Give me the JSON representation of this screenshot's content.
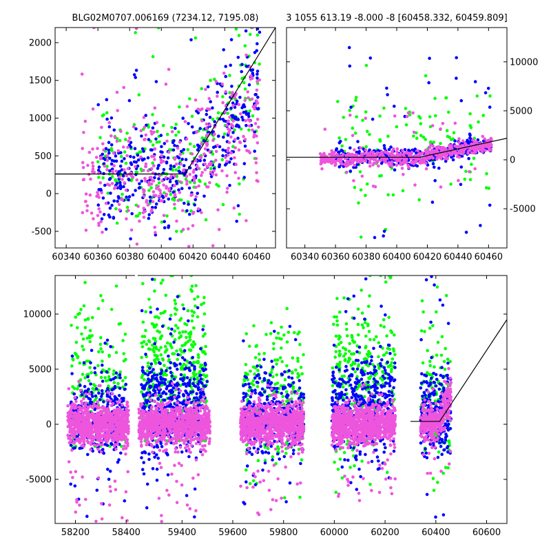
{
  "colors": {
    "green": "#00ff00",
    "blue": "#0000ff",
    "pink": "#ee55dd",
    "frame": "#000000",
    "model": "#000000"
  },
  "chart_data": [
    {
      "id": "top-left",
      "type": "scatter",
      "title": "BLG02M0707.006169 (7234.12, 7195.08)",
      "xlim": [
        60333,
        60472
      ],
      "ylim": [
        -720,
        2200
      ],
      "xticks": [
        60340,
        60360,
        60380,
        60400,
        60420,
        60440,
        60460
      ],
      "yticks": [
        -500,
        0,
        500,
        1000,
        1500,
        2000
      ],
      "y_axis_side": "left",
      "series": [
        {
          "color": "green",
          "clouds": [
            {
              "xmin": 60360,
              "xmax": 60462,
              "ymin": -500,
              "ymax": 2200,
              "n": 220,
              "yshape": "rise",
              "base": 300,
              "top": 1600,
              "spread": 450
            }
          ]
        },
        {
          "color": "blue",
          "clouds": [
            {
              "xmin": 60360,
              "xmax": 60462,
              "ymin": -600,
              "ymax": 2200,
              "n": 420,
              "yshape": "rise",
              "base": 250,
              "top": 1400,
              "spread": 380
            }
          ]
        },
        {
          "color": "pink",
          "clouds": [
            {
              "xmin": 60350,
              "xmax": 60462,
              "ymin": -700,
              "ymax": 2200,
              "n": 380,
              "yshape": "rise",
              "base": 150,
              "top": 1200,
              "spread": 420
            }
          ]
        }
      ],
      "model_line": {
        "x": [
          60333,
          60415,
          60472
        ],
        "y": [
          260,
          260,
          2200
        ]
      }
    },
    {
      "id": "top-right",
      "type": "scatter",
      "title": "3 1055 613.19 -8.000 -8 [60458.332, 60459.809]",
      "xlim": [
        60328,
        60472
      ],
      "ylim": [
        -9000,
        13500
      ],
      "xticks": [
        60340,
        60360,
        60380,
        60400,
        60420,
        60440,
        60460
      ],
      "yticks": [
        -5000,
        0,
        5000,
        10000
      ],
      "y_axis_side": "right",
      "series": [
        {
          "color": "green",
          "clouds": [
            {
              "xmin": 60360,
              "xmax": 60462,
              "ymin": -8500,
              "ymax": 13500,
              "n": 120,
              "yshape": "flat",
              "base": 1500,
              "top": 1500,
              "spread": 3000
            }
          ]
        },
        {
          "color": "blue",
          "clouds": [
            {
              "xmin": 60360,
              "xmax": 60462,
              "ymin": -8000,
              "ymax": 12000,
              "n": 420,
              "yshape": "rise",
              "base": 300,
              "top": 1600,
              "spread": 500
            }
          ]
        },
        {
          "color": "pink",
          "clouds": [
            {
              "xmin": 60350,
              "xmax": 60462,
              "ymin": -3000,
              "ymax": 5000,
              "n": 560,
              "yshape": "rise",
              "base": 200,
              "top": 1600,
              "spread": 350
            }
          ]
        }
      ],
      "model_line": {
        "x": [
          60328,
          60415,
          60472
        ],
        "y": [
          260,
          260,
          2200
        ]
      }
    },
    {
      "id": "bottom",
      "type": "scatter",
      "title": "",
      "xlim": [
        58120,
        60680
      ],
      "ylim": [
        -9000,
        13500
      ],
      "xticks": [
        58200,
        58400,
        59400,
        59600,
        59800,
        60000,
        60200,
        60400,
        60600
      ],
      "yticks": [
        -5000,
        0,
        5000,
        10000
      ],
      "y_axis_side": "left",
      "axis_break": {
        "from": 58440,
        "to": 59220,
        "gap_label": ""
      },
      "series": [
        {
          "color": "green",
          "clouds": [
            {
              "xmin": 58180,
              "xmax": 58400,
              "ymin": -2000,
              "ymax": 13500,
              "n": 170,
              "yshape": "flat",
              "base": 4000,
              "top": 4000,
              "spread": 3500
            },
            {
              "xmin": 59240,
              "xmax": 59500,
              "ymin": -1500,
              "ymax": 13500,
              "n": 380,
              "yshape": "flat",
              "base": 5000,
              "top": 5000,
              "spread": 3500
            },
            {
              "xmin": 59640,
              "xmax": 59880,
              "ymin": -8500,
              "ymax": 13000,
              "n": 200,
              "yshape": "flat",
              "base": 2500,
              "top": 2500,
              "spread": 3500
            },
            {
              "xmin": 59990,
              "xmax": 60240,
              "ymin": -7000,
              "ymax": 13500,
              "n": 330,
              "yshape": "flat",
              "base": 4000,
              "top": 4000,
              "spread": 3500
            },
            {
              "xmin": 60340,
              "xmax": 60460,
              "ymin": -6000,
              "ymax": 13000,
              "n": 130,
              "yshape": "flat",
              "base": 2500,
              "top": 2500,
              "spread": 3500
            }
          ]
        },
        {
          "color": "blue",
          "clouds": [
            {
              "xmin": 58180,
              "xmax": 58400,
              "ymin": -8500,
              "ymax": 8000,
              "n": 320,
              "yshape": "flat",
              "base": 700,
              "top": 700,
              "spread": 1800
            },
            {
              "xmin": 59240,
              "xmax": 59500,
              "ymin": -8500,
              "ymax": 13500,
              "n": 500,
              "yshape": "flat",
              "base": 1500,
              "top": 1500,
              "spread": 2200
            },
            {
              "xmin": 59640,
              "xmax": 59880,
              "ymin": -8000,
              "ymax": 12500,
              "n": 340,
              "yshape": "flat",
              "base": 900,
              "top": 900,
              "spread": 2000
            },
            {
              "xmin": 59990,
              "xmax": 60240,
              "ymin": -6500,
              "ymax": 13500,
              "n": 460,
              "yshape": "flat",
              "base": 1500,
              "top": 1500,
              "spread": 2200
            },
            {
              "xmin": 60340,
              "xmax": 60460,
              "ymin": -8500,
              "ymax": 13500,
              "n": 240,
              "yshape": "flat",
              "base": 800,
              "top": 800,
              "spread": 2000
            }
          ]
        },
        {
          "color": "pink",
          "clouds": [
            {
              "xmin": 58170,
              "xmax": 58410,
              "ymin": -9000,
              "ymax": 4000,
              "n": 900,
              "yshape": "flat",
              "base": 0,
              "top": 0,
              "spread": 900
            },
            {
              "xmin": 59230,
              "xmax": 59510,
              "ymin": -9000,
              "ymax": 4000,
              "n": 1000,
              "yshape": "flat",
              "base": 0,
              "top": 0,
              "spread": 900
            },
            {
              "xmin": 59630,
              "xmax": 59880,
              "ymin": -8500,
              "ymax": 4000,
              "n": 900,
              "yshape": "flat",
              "base": 0,
              "top": 0,
              "spread": 900
            },
            {
              "xmin": 59990,
              "xmax": 60240,
              "ymin": -7000,
              "ymax": 4000,
              "n": 1000,
              "yshape": "flat",
              "base": 0,
              "top": 0,
              "spread": 900
            },
            {
              "xmin": 60340,
              "xmax": 60460,
              "ymin": -5000,
              "ymax": 5500,
              "n": 360,
              "yshape": "rise",
              "base": 0,
              "top": 2500,
              "spread": 800
            }
          ]
        }
      ],
      "model_line": {
        "x": [
          60300,
          60415,
          60680
        ],
        "y": [
          260,
          260,
          9500
        ]
      }
    }
  ]
}
